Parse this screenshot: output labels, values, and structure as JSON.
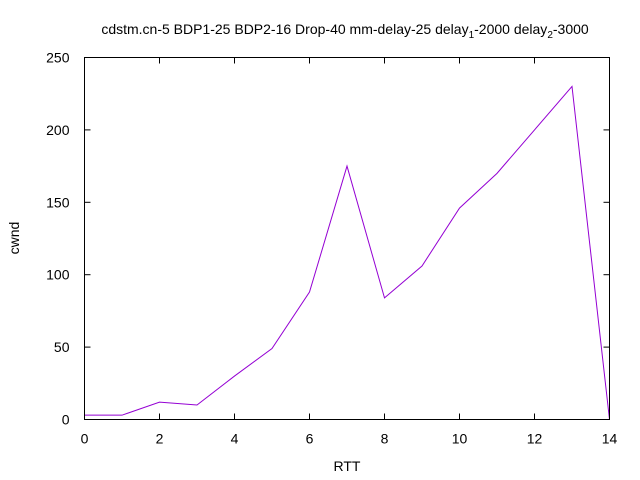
{
  "chart_data": {
    "type": "line",
    "title": {
      "main": "cdstm.cn-5 BDP1-25 BDP2-16 Drop-40 mm-delay-25 delay",
      "sub1": "1",
      "mid": "-2000 delay",
      "sub2": "2",
      "tail": "-3000"
    },
    "xlabel": "RTT",
    "ylabel": "cwnd",
    "xlim": [
      0,
      14
    ],
    "ylim": [
      0,
      250
    ],
    "x_ticks": [
      0,
      2,
      4,
      6,
      8,
      10,
      12,
      14
    ],
    "y_ticks": [
      0,
      50,
      100,
      150,
      200,
      250
    ],
    "grid": false,
    "series": [
      {
        "color": "#9400d3",
        "x": [
          0,
          1,
          2,
          3,
          4,
          5,
          6,
          7,
          8,
          9,
          10,
          11,
          12,
          13,
          14
        ],
        "y": [
          3,
          3,
          12,
          10,
          30,
          49,
          88,
          175,
          84,
          106,
          146,
          170,
          200,
          230,
          0
        ]
      }
    ]
  }
}
